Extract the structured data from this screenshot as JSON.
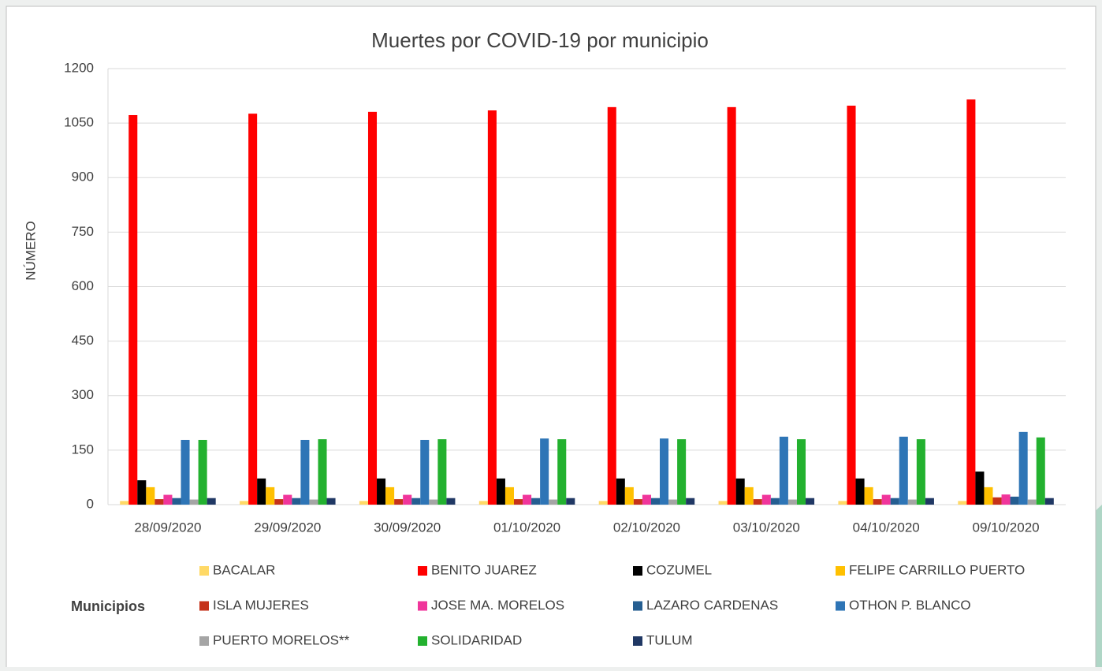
{
  "chart_data": {
    "type": "bar",
    "title": "Muertes por COVID-19 por municipio",
    "y_label": "NÚMERO",
    "legend_title": "Municipios",
    "categories": [
      "28/09/2020",
      "29/09/2020",
      "30/09/2020",
      "01/10/2020",
      "02/10/2020",
      "03/10/2020",
      "04/10/2020",
      "09/10/2020"
    ],
    "series": [
      {
        "name": "BACALAR",
        "color": "#ffd966",
        "values": [
          10,
          10,
          10,
          10,
          10,
          10,
          10,
          10
        ]
      },
      {
        "name": "BENITO JUAREZ",
        "color": "#ff0000",
        "values": [
          1072,
          1076,
          1081,
          1085,
          1094,
          1094,
          1098,
          1115
        ]
      },
      {
        "name": "COZUMEL",
        "color": "#000000",
        "values": [
          67,
          72,
          72,
          72,
          72,
          72,
          72,
          91
        ]
      },
      {
        "name": "FELIPE CARRILLO PUERTO",
        "color": "#ffc000",
        "values": [
          48,
          48,
          48,
          48,
          48,
          48,
          48,
          48
        ]
      },
      {
        "name": "ISLA MUJERES",
        "color": "#c5321a",
        "values": [
          15,
          15,
          15,
          15,
          15,
          15,
          15,
          20
        ]
      },
      {
        "name": "JOSE MA. MORELOS",
        "color": "#f0359b",
        "values": [
          27,
          27,
          27,
          27,
          27,
          27,
          27,
          28
        ]
      },
      {
        "name": "LAZARO CARDENAS",
        "color": "#255e91",
        "values": [
          18,
          18,
          18,
          18,
          18,
          18,
          18,
          22
        ]
      },
      {
        "name": "OTHON P. BLANCO",
        "color": "#2e75b6",
        "values": [
          178,
          178,
          178,
          182,
          182,
          187,
          187,
          200
        ]
      },
      {
        "name": "PUERTO MORELOS**",
        "color": "#a5a5a5",
        "values": [
          14,
          14,
          14,
          14,
          14,
          14,
          14,
          14
        ]
      },
      {
        "name": "SOLIDARIDAD",
        "color": "#23b12f",
        "values": [
          178,
          180,
          180,
          180,
          180,
          180,
          180,
          185
        ]
      },
      {
        "name": "TULUM",
        "color": "#203864",
        "values": [
          18,
          18,
          18,
          18,
          18,
          18,
          18,
          18
        ]
      }
    ],
    "ylim": [
      0,
      1200
    ],
    "yticks": [
      0,
      150,
      300,
      450,
      600,
      750,
      900,
      1050,
      1200
    ],
    "grid": true
  }
}
